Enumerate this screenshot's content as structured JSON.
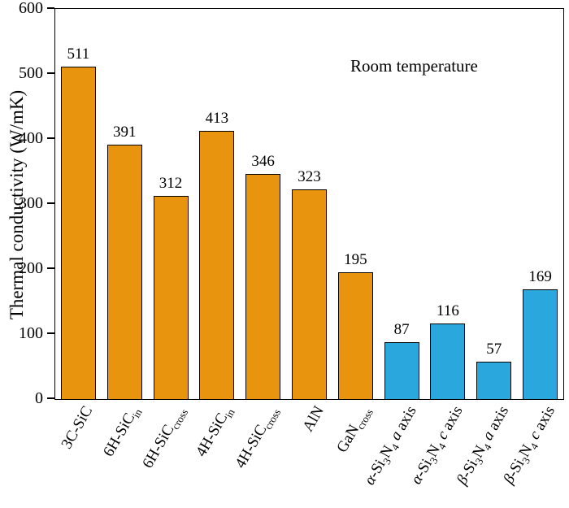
{
  "chart_data": {
    "type": "bar",
    "title": "",
    "annotation": "Room temperature",
    "ylabel": "Thermal conductivity (W/mK)",
    "xlabel": "",
    "ylim": [
      0,
      600
    ],
    "yticks": [
      0,
      100,
      200,
      300,
      400,
      500,
      600
    ],
    "grid": false,
    "legend": false,
    "categories": [
      "3C-SiC",
      "6H-SiC_{in}",
      "6H-SiC_{cross}",
      "4H-SiC_{in}",
      "4H-SiC_{cross}",
      "AlN",
      "GaN_{cross}",
      "*α*-Si_{3}N_{4} *a* axis",
      "*α*-Si_{3}N_{4} *c* axis",
      "*β*-Si_{3}N_{4} *a* axis",
      "*β*-Si_{3}N_{4} *c* axis"
    ],
    "values": [
      511,
      391,
      312,
      413,
      346,
      323,
      195,
      87,
      116,
      57,
      169
    ],
    "bar_colors": [
      "#E8940E",
      "#E8940E",
      "#E8940E",
      "#E8940E",
      "#E8940E",
      "#E8940E",
      "#E8940E",
      "#2AA7DC",
      "#2AA7DC",
      "#2AA7DC",
      "#2AA7DC"
    ],
    "value_labels": true
  }
}
